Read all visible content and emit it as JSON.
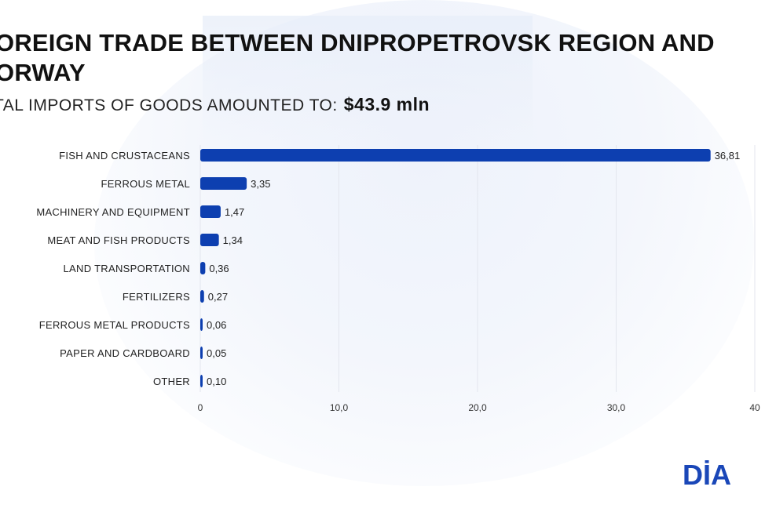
{
  "header": {
    "title": "OREIGN TRADE BETWEEN DNIPROPETROVSK REGION AND ORWAY",
    "subtitle": "TAL IMPORTS OF GOODS AMOUNTED TO:",
    "amount": "$43.9 mln"
  },
  "logo": {
    "text": "DİA",
    "color": "#1a47b8"
  },
  "colors": {
    "bar": "#0d3fb0",
    "grid": "#e3e6ee",
    "text": "#222222"
  },
  "chart_data": {
    "type": "bar",
    "orientation": "horizontal",
    "categories": [
      "FISH AND CRUSTACEANS",
      "FERROUS METAL",
      "MACHINERY AND EQUIPMENT",
      "MEAT AND FISH PRODUCTS",
      "LAND TRANSPORTATION",
      "FERTILIZERS",
      "FERROUS METAL PRODUCTS",
      "PAPER AND CARDBOARD",
      "OTHER"
    ],
    "values": [
      36.81,
      3.35,
      1.47,
      1.34,
      0.36,
      0.27,
      0.06,
      0.05,
      0.1
    ],
    "value_labels": [
      "36,81",
      "3,35",
      "1,47",
      "1,34",
      "0,36",
      "0,27",
      "0,06",
      "0,05",
      "0,10"
    ],
    "x_ticks": [
      0,
      10,
      20,
      30,
      40
    ],
    "x_tick_labels": [
      "0",
      "10,0",
      "20,0",
      "30,0",
      "40"
    ],
    "xlim": [
      0,
      40
    ],
    "grid": true
  }
}
